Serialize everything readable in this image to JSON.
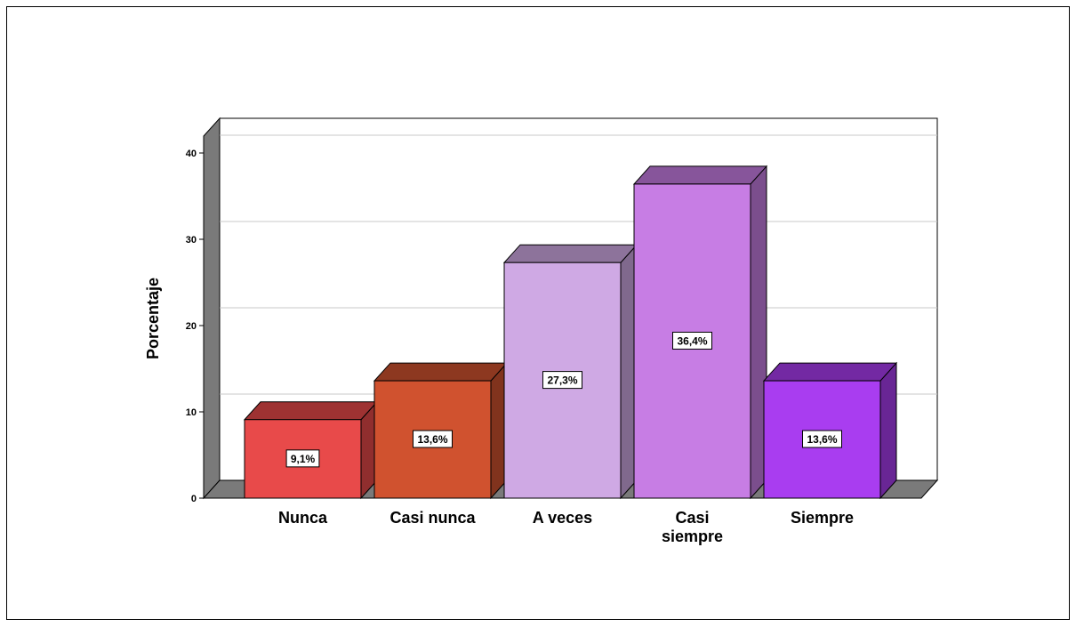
{
  "chart_data": {
    "type": "bar",
    "categories": [
      "Nunca",
      "Casi nunca",
      "A veces",
      "Casi siempre",
      "Siempre"
    ],
    "category_lines": [
      [
        "Nunca"
      ],
      [
        "Casi nunca"
      ],
      [
        "A veces"
      ],
      [
        "Casi",
        "siempre"
      ],
      [
        "Siempre"
      ]
    ],
    "values": [
      9.1,
      13.6,
      27.3,
      36.4,
      13.6
    ],
    "data_labels": [
      "9,1%",
      "13,6%",
      "27,3%",
      "36,4%",
      "13,6%"
    ],
    "title": "",
    "xlabel": "",
    "ylabel": "Porcentaje",
    "ylim": [
      0,
      42
    ],
    "yticks": [
      0,
      10,
      20,
      30,
      40
    ],
    "grid": true,
    "style": "3d",
    "colors": [
      "#e84a4a",
      "#d0522f",
      "#cfa9e4",
      "#c77de4",
      "#a93df0"
    ]
  }
}
